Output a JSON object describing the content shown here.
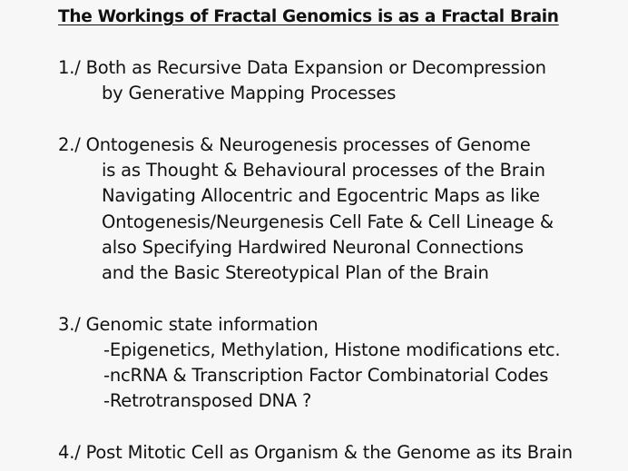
{
  "title": "The Workings of Fractal Genomics is as a Fractal Brain",
  "sections": [
    {
      "lines": [
        "1./ Both as Recursive Data Expansion or Decompression",
        "by Generative Mapping Processes"
      ]
    },
    {
      "lines": [
        "2./ Ontogenesis & Neurogenesis processes of Genome",
        "is as Thought & Behavioural processes of the Brain",
        "Navigating Allocentric and Egocentric Maps as like",
        "Ontogenesis/Neurgenesis Cell Fate & Cell Lineage &",
        "also Specifying Hardwired Neuronal Connections",
        "and the Basic Stereotypical Plan of the Brain"
      ]
    },
    {
      "lines": [
        "3./ Genomic state information",
        "-Epigenetics, Methylation, Histone modifications etc.",
        "-ncRNA & Transcription Factor Combinatorial Codes",
        "-Retrotransposed DNA ?"
      ]
    },
    {
      "lines": [
        "4./ Post Mitotic Cell as Organism & the Genome as its Brain"
      ]
    }
  ]
}
